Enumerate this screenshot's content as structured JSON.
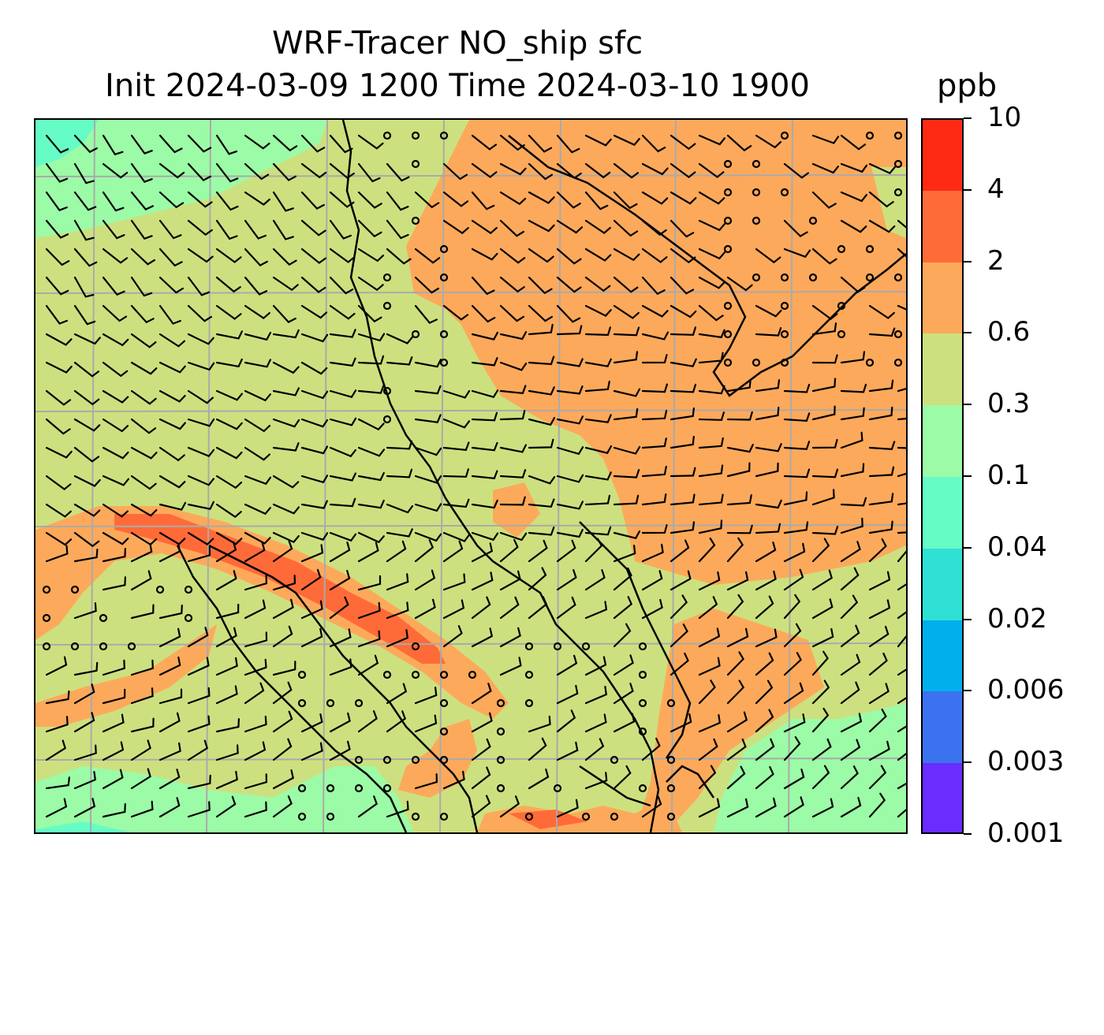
{
  "title": {
    "line1": "WRF-Tracer NO_ship sfc",
    "line2": "Init 2024-03-09 1200 Time 2024-03-10 1900"
  },
  "colorbar": {
    "units": "ppb",
    "levels": [
      {
        "label": "0.001",
        "color": "#6a2cff"
      },
      {
        "label": "0.003",
        "color": "#3a72f0"
      },
      {
        "label": "0.006",
        "color": "#00b0ec"
      },
      {
        "label": "0.02",
        "color": "#2fe0d5"
      },
      {
        "label": "0.04",
        "color": "#66fcc6"
      },
      {
        "label": "0.1",
        "color": "#9cfba6"
      },
      {
        "label": "0.3",
        "color": "#cde07f"
      },
      {
        "label": "0.6",
        "color": "#fda95b"
      },
      {
        "label": "2",
        "color": "#ff6b38"
      },
      {
        "label": "4",
        "color": "#ff2a14"
      },
      {
        "label": "10",
        "color": ""
      }
    ]
  },
  "map": {
    "background_color": "#cde07f",
    "gridline_color": "#aaaaaa",
    "coastline_color": "#000000",
    "wind_barb_color": "#000000",
    "gridline_count_x": 7,
    "gridline_count_y": 6
  }
}
